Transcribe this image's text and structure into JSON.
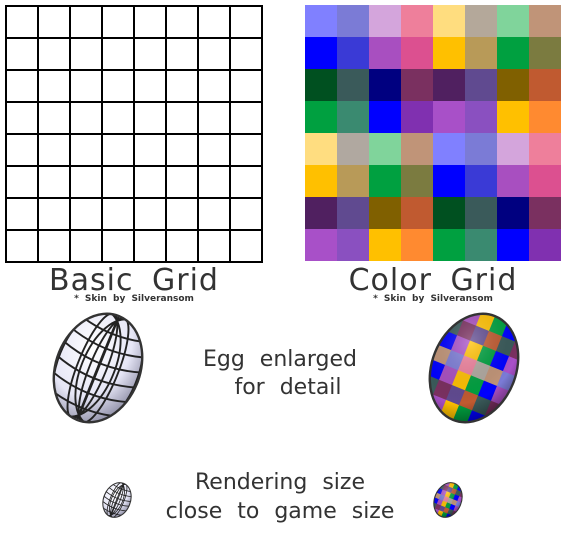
{
  "panels": [
    {
      "title": "Basic Grid",
      "credit": "* Skin by Silveransom"
    },
    {
      "title": "Color Grid",
      "credit": "* Skin by Silveransom"
    }
  ],
  "egg_caption": [
    "Egg enlarged",
    "for detail"
  ],
  "render_caption": [
    "Rendering size",
    "close to game size"
  ]
}
